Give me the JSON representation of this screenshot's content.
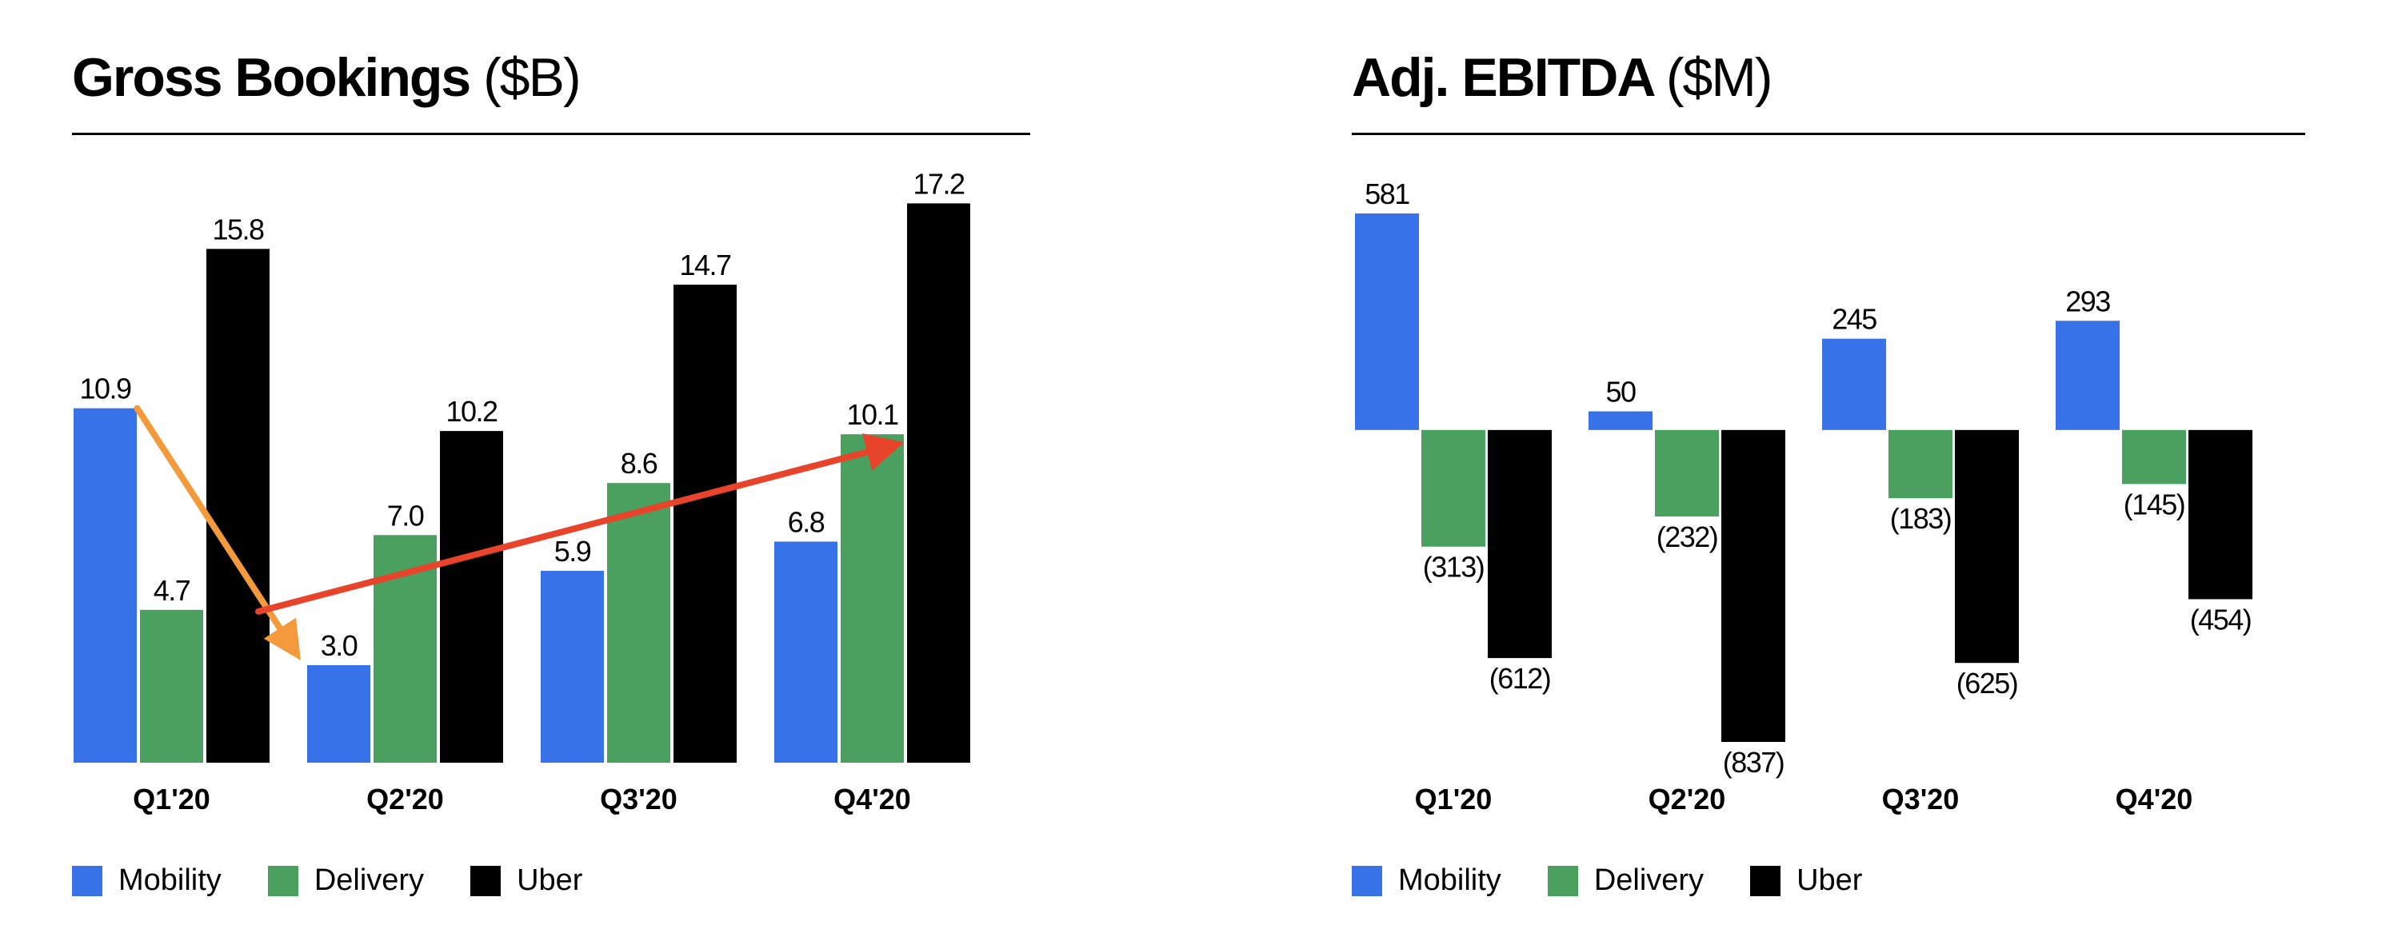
{
  "colors": {
    "mobility": "#3872E8",
    "delivery": "#4AA05F",
    "uber": "#000000",
    "arrow_down": "#F39A3C",
    "arrow_up": "#E8442C"
  },
  "chart_data": [
    {
      "type": "bar",
      "title": "Gross Bookings",
      "title_unit": "($B)",
      "categories": [
        "Q1'20",
        "Q2'20",
        "Q3'20",
        "Q4'20"
      ],
      "series": [
        {
          "name": "Mobility",
          "values": [
            10.9,
            3.0,
            5.9,
            6.8
          ],
          "labels": [
            "10.9",
            "3.0",
            "5.9",
            "6.8"
          ]
        },
        {
          "name": "Delivery",
          "values": [
            4.7,
            7.0,
            8.6,
            10.1
          ],
          "labels": [
            "4.7",
            "7.0",
            "8.6",
            "10.1"
          ]
        },
        {
          "name": "Uber",
          "values": [
            15.8,
            10.2,
            14.7,
            17.2
          ],
          "labels": [
            "15.8",
            "10.2",
            "14.7",
            "17.2"
          ]
        }
      ],
      "ylim": [
        0,
        17.8
      ],
      "annotations": [
        {
          "type": "arrow",
          "color": "arrow_down",
          "from": {
            "series": "Mobility",
            "category": "Q1'20"
          },
          "to": {
            "series": "Mobility",
            "category": "Q2'20"
          }
        },
        {
          "type": "arrow",
          "color": "arrow_up",
          "from": {
            "series": "Delivery",
            "category": "Q1'20"
          },
          "to": {
            "series": "Delivery",
            "category": "Q4'20"
          }
        }
      ],
      "legend": [
        "Mobility",
        "Delivery",
        "Uber"
      ]
    },
    {
      "type": "bar",
      "title": "Adj. EBITDA",
      "title_unit": "($M)",
      "categories": [
        "Q1'20",
        "Q2'20",
        "Q3'20",
        "Q4'20"
      ],
      "series": [
        {
          "name": "Mobility",
          "values": [
            581,
            50,
            245,
            293
          ],
          "labels": [
            "581",
            "50",
            "245",
            "293"
          ]
        },
        {
          "name": "Delivery",
          "values": [
            -313,
            -232,
            -183,
            -145
          ],
          "labels": [
            "(313)",
            "(232)",
            "(183)",
            "(145)"
          ]
        },
        {
          "name": "Uber",
          "values": [
            -612,
            -837,
            -625,
            -454
          ],
          "labels": [
            "(612)",
            "(837)",
            "(625)",
            "(454)"
          ]
        }
      ],
      "ylim": [
        -837,
        581
      ],
      "legend": [
        "Mobility",
        "Delivery",
        "Uber"
      ]
    }
  ]
}
